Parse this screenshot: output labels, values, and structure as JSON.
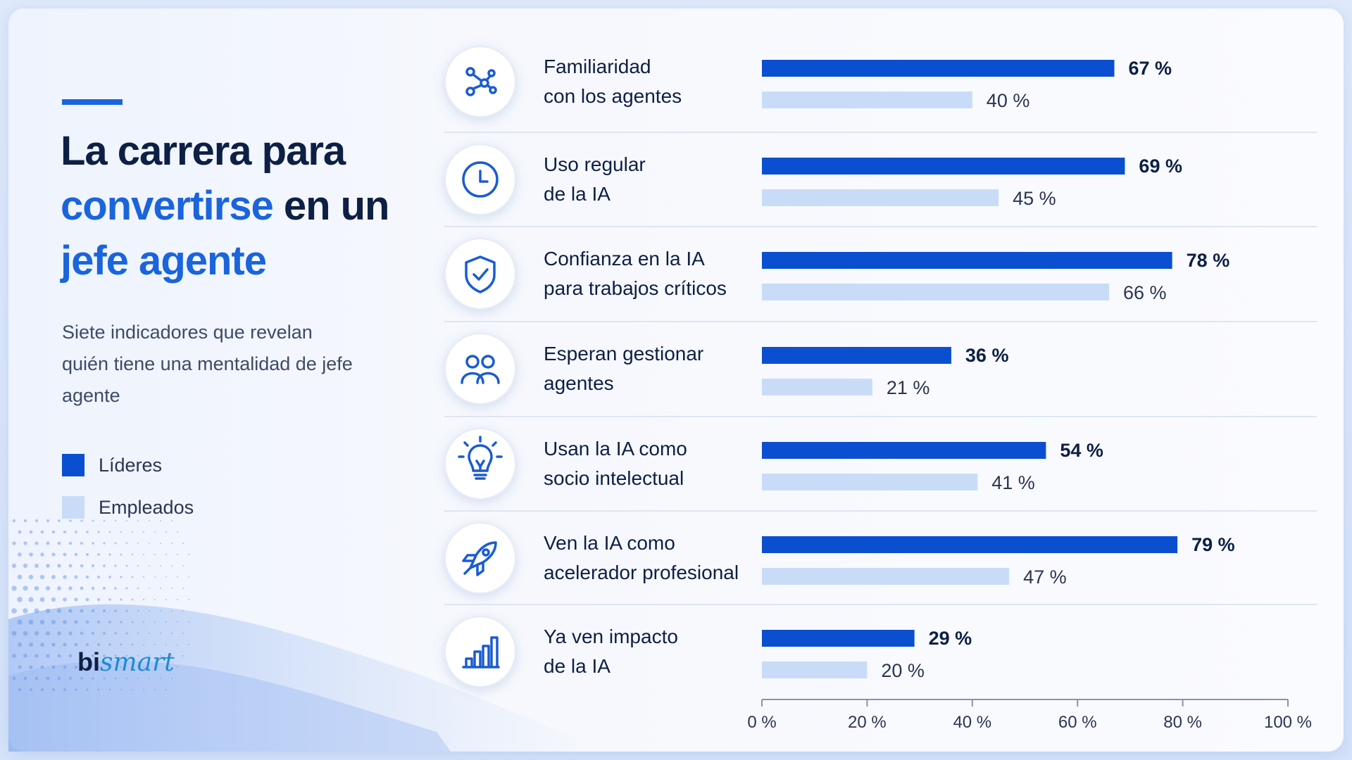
{
  "title": {
    "line1": "La carrera para",
    "line2_highlight": "convertirse",
    "line2_rest": " en un",
    "line3_highlight": "jefe agente"
  },
  "subtitle": "Siete indicadores que revelan quién tiene una mentalidad de jefe agente",
  "legend": [
    {
      "label": "Líderes",
      "color": "#0a4fd0"
    },
    {
      "label": "Empleados",
      "color": "#c9dcf7"
    }
  ],
  "logo": {
    "bi": "bi",
    "smart": "smart"
  },
  "chart_data": {
    "type": "bar",
    "orientation": "horizontal",
    "categories": [
      {
        "line1": "Familiaridad",
        "line2": "con los agentes",
        "icon": "network-nodes-icon"
      },
      {
        "line1": "Uso regular",
        "line2": "de la IA",
        "icon": "clock-icon"
      },
      {
        "line1": "Confianza en la IA",
        "line2": "para trabajos críticos",
        "icon": "shield-check-icon"
      },
      {
        "line1": "Esperan gestionar",
        "line2": "agentes",
        "icon": "people-icon"
      },
      {
        "line1": "Usan la IA como",
        "line2": "socio intelectual",
        "icon": "lightbulb-icon"
      },
      {
        "line1": "Ven la IA como",
        "line2": "acelerador profesional",
        "icon": "rocket-icon"
      },
      {
        "line1": "Ya ven impacto",
        "line2": "de la IA",
        "icon": "bar-chart-icon"
      }
    ],
    "series": [
      {
        "name": "Líderes",
        "values": [
          67,
          69,
          78,
          36,
          54,
          79,
          29
        ],
        "labels": [
          "67 %",
          "69 %",
          "78 %",
          "36 %",
          "54 %",
          "79 %",
          "29 %"
        ]
      },
      {
        "name": "Empleados",
        "values": [
          40,
          45,
          66,
          21,
          41,
          47,
          20
        ],
        "labels": [
          "40 %",
          "45 %",
          "66 %",
          "21 %",
          "41 %",
          "47 %",
          "20 %"
        ]
      }
    ],
    "xlim": [
      0,
      100
    ],
    "xticks": [
      0,
      20,
      40,
      60,
      80,
      100
    ],
    "xtick_labels": [
      "0 %",
      "20 %",
      "40 %",
      "60 %",
      "80 %",
      "100 %"
    ],
    "grid": false,
    "legend_position": "left"
  }
}
